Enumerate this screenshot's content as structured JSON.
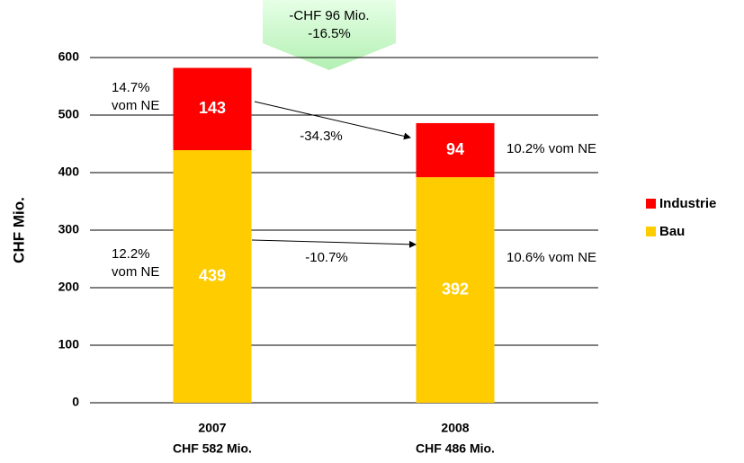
{
  "chart_data": {
    "type": "stacked_bar",
    "categories": [
      "2007",
      "2008"
    ],
    "category_sublabels": [
      "CHF 582 Mio.",
      "CHF 486 Mio."
    ],
    "ylabel": "CHF Mio.",
    "ylim": [
      0,
      600
    ],
    "yticks": [
      0,
      100,
      200,
      300,
      400,
      500,
      600
    ],
    "grid": true,
    "legend": "right",
    "series": [
      {
        "name": "Bau",
        "color": "#ffcc00",
        "values": [
          439,
          392
        ]
      },
      {
        "name": "Industrie",
        "color": "#ff0000",
        "values": [
          143,
          94
        ]
      }
    ],
    "annotations": [
      {
        "lines": [
          "-CHF 96 Mio.",
          "-16.5%"
        ]
      },
      {
        "lines": [
          "14.7%",
          "vom NE"
        ]
      },
      {
        "lines": [
          "12.2%",
          "vom NE"
        ]
      },
      {
        "lines": [
          "-34.3%"
        ]
      },
      {
        "lines": [
          "-10.7%"
        ]
      },
      {
        "lines": [
          "10.2% vom NE"
        ]
      },
      {
        "lines": [
          "10.6% vom NE"
        ]
      }
    ]
  }
}
